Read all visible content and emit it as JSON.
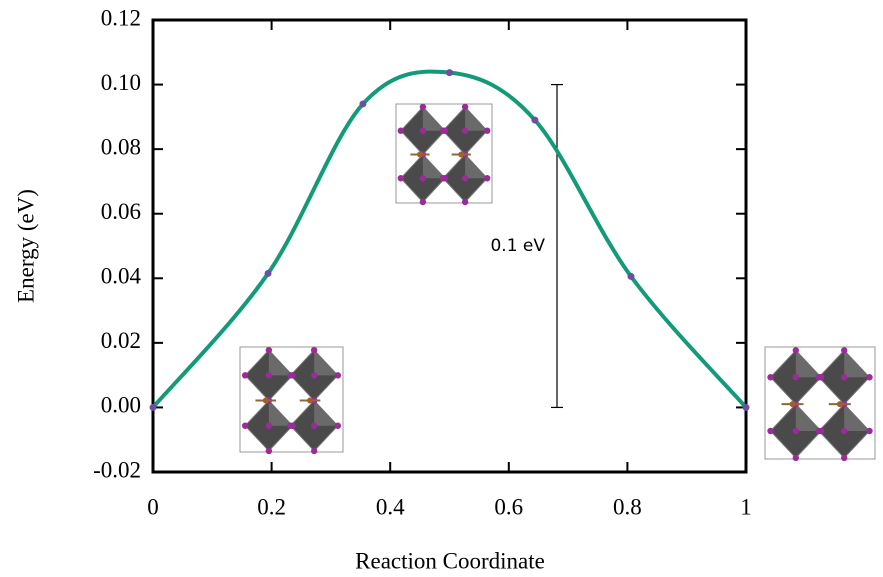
{
  "chart_data": {
    "type": "line",
    "x_label": "Reaction Coordinate",
    "y_label": "Energy (eV)",
    "series": [
      {
        "color": "#139a78",
        "marker_color": "#6b4fa3",
        "x": [
          0,
          0.194,
          0.354,
          0.5,
          0.644,
          0.806,
          1
        ],
        "values": [
          0,
          0.0415,
          0.094,
          0.1037,
          0.089,
          0.0406,
          0
        ]
      }
    ],
    "xlim": [
      0,
      1
    ],
    "xticks": [
      0,
      0.2,
      0.4,
      0.6,
      0.8,
      1
    ],
    "ylim": [
      -0.02,
      0.12
    ],
    "yticks": [
      -0.02,
      {
        "value": 0,
        "label": "0.00"
      },
      0.02,
      0.04,
      0.06,
      0.08,
      {
        "value": 0.1,
        "label": "0.10"
      },
      0.12
    ],
    "scale_bar": {
      "label": "0.1 eV",
      "value": 0.1
    }
  }
}
